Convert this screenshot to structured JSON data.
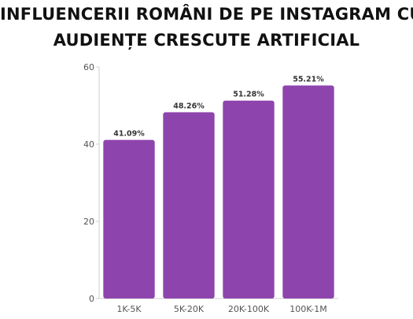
{
  "title_lines": [
    "INFLUENCERII ROMÂNI DE PE INSTAGRAM CU",
    "AUDIENȚE CRESCUTE ARTIFICIAL"
  ],
  "chart_data": {
    "type": "bar",
    "title": "INFLUENCERII ROMÂNI DE PE INSTAGRAM CU AUDIENȚE CRESCUTE ARTIFICIAL",
    "categories": [
      "1K-5K",
      "5K-20K",
      "20K-100K",
      "100K-1M"
    ],
    "values": [
      41.09,
      48.26,
      51.28,
      55.21
    ],
    "data_labels": [
      "41.09%",
      "48.26%",
      "51.28%",
      "55.21%"
    ],
    "yticks": [
      "0",
      "20",
      "40",
      "60"
    ],
    "ylim": [
      0,
      60
    ],
    "xlabel": "",
    "ylabel": "",
    "grid": false,
    "legend": "none",
    "bar_color": "#8e44ad"
  }
}
